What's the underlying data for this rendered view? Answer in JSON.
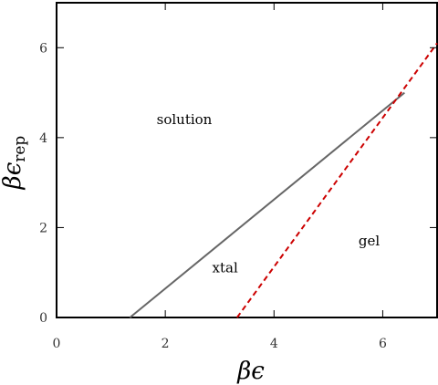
{
  "chart_data": {
    "type": "line",
    "title": "",
    "xlabel": "βϵ",
    "ylabel_main": "βϵ",
    "ylabel_sub": "rep",
    "xlim": [
      0,
      7
    ],
    "ylim": [
      0,
      7
    ],
    "x_ticks": [
      0,
      2,
      4,
      6
    ],
    "y_ticks": [
      0,
      2,
      4,
      6
    ],
    "grid": false,
    "legend": "none",
    "series": [
      {
        "style": "solid",
        "color": "#666666",
        "points": [
          [
            1.35,
            0
          ],
          [
            6.4,
            5.0
          ]
        ]
      },
      {
        "style": "dashed",
        "color": "#cc0000",
        "points": [
          [
            3.32,
            0
          ],
          [
            7.0,
            6.1
          ]
        ]
      }
    ],
    "annotations": [
      {
        "text": "solution",
        "x": 2.35,
        "y": 4.3
      },
      {
        "text": "xtal",
        "x": 3.1,
        "y": 1.0
      },
      {
        "text": "gel",
        "x": 5.75,
        "y": 1.6
      }
    ]
  }
}
